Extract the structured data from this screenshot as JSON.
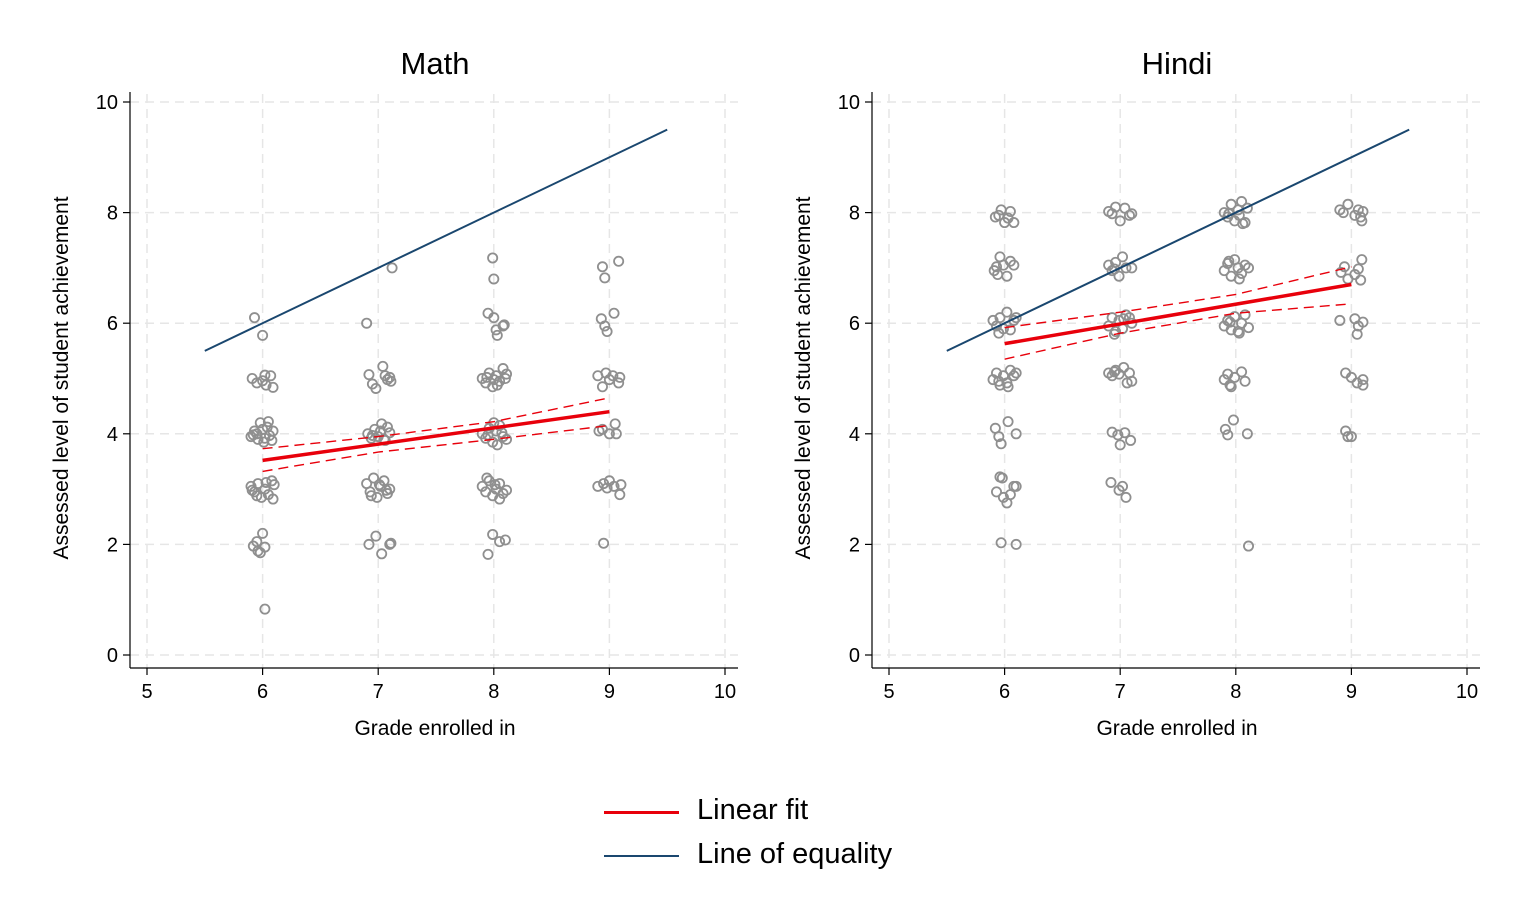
{
  "chart_data": [
    {
      "type": "scatter",
      "title": "Math",
      "xlabel": "Grade enrolled in",
      "ylabel": "Assessed level of student achievement",
      "xlim": [
        5,
        10
      ],
      "ylim": [
        0,
        10
      ],
      "xticks": [
        "5",
        "6",
        "7",
        "8",
        "9",
        "10"
      ],
      "yticks": [
        "0",
        "2",
        "4",
        "6",
        "8",
        "10"
      ],
      "grid": true,
      "points": [
        [
          5.93,
          6.1
        ],
        [
          6.0,
          5.78
        ],
        [
          5.91,
          5.0
        ],
        [
          5.95,
          4.92
        ],
        [
          6.0,
          4.96
        ],
        [
          6.03,
          4.88
        ],
        [
          6.07,
          5.05
        ],
        [
          6.09,
          4.84
        ],
        [
          6.02,
          5.06
        ],
        [
          5.9,
          3.95
        ],
        [
          5.93,
          4.05
        ],
        [
          5.96,
          3.9
        ],
        [
          5.98,
          4.2
        ],
        [
          6.01,
          3.85
        ],
        [
          6.04,
          4.12
        ],
        [
          6.06,
          3.97
        ],
        [
          6.09,
          4.05
        ],
        [
          5.95,
          4.0
        ],
        [
          6.02,
          3.92
        ],
        [
          6.05,
          4.22
        ],
        [
          6.08,
          3.88
        ],
        [
          5.92,
          3.98
        ],
        [
          6.0,
          4.08
        ],
        [
          5.9,
          3.05
        ],
        [
          5.93,
          2.95
        ],
        [
          5.96,
          3.1
        ],
        [
          5.99,
          2.85
        ],
        [
          6.02,
          3.0
        ],
        [
          6.05,
          2.9
        ],
        [
          6.08,
          3.15
        ],
        [
          6.1,
          3.08
        ],
        [
          5.95,
          2.88
        ],
        [
          6.03,
          3.12
        ],
        [
          6.09,
          2.82
        ],
        [
          5.91,
          2.98
        ],
        [
          5.92,
          1.97
        ],
        [
          5.95,
          2.05
        ],
        [
          5.98,
          1.85
        ],
        [
          6.0,
          2.2
        ],
        [
          6.02,
          1.95
        ],
        [
          5.96,
          1.88
        ],
        [
          6.02,
          0.83
        ],
        [
          6.9,
          6.0
        ],
        [
          7.12,
          7.0
        ],
        [
          6.92,
          5.07
        ],
        [
          6.95,
          4.9
        ],
        [
          6.98,
          4.82
        ],
        [
          7.04,
          5.22
        ],
        [
          7.06,
          5.05
        ],
        [
          7.08,
          4.98
        ],
        [
          7.1,
          5.02
        ],
        [
          7.11,
          4.95
        ],
        [
          6.91,
          4.0
        ],
        [
          6.94,
          3.92
        ],
        [
          6.97,
          4.08
        ],
        [
          7.0,
          3.95
        ],
        [
          7.03,
          4.18
        ],
        [
          7.05,
          3.9
        ],
        [
          7.08,
          4.12
        ],
        [
          7.1,
          4.02
        ],
        [
          6.95,
          3.97
        ],
        [
          7.02,
          4.05
        ],
        [
          7.06,
          3.88
        ],
        [
          6.9,
          3.1
        ],
        [
          6.93,
          2.95
        ],
        [
          6.96,
          3.2
        ],
        [
          6.99,
          2.85
        ],
        [
          7.02,
          3.05
        ],
        [
          7.05,
          3.15
        ],
        [
          7.08,
          2.92
        ],
        [
          7.1,
          3.0
        ],
        [
          6.94,
          2.88
        ],
        [
          7.01,
          3.08
        ],
        [
          7.07,
          2.98
        ],
        [
          6.92,
          2.0
        ],
        [
          6.98,
          2.15
        ],
        [
          7.03,
          1.83
        ],
        [
          7.1,
          2.0
        ],
        [
          7.11,
          2.02
        ],
        [
          7.99,
          7.18
        ],
        [
          8.0,
          6.8
        ],
        [
          7.95,
          6.18
        ],
        [
          8.0,
          6.1
        ],
        [
          8.02,
          5.88
        ],
        [
          8.03,
          5.78
        ],
        [
          8.08,
          5.95
        ],
        [
          8.09,
          5.97
        ],
        [
          7.9,
          5.0
        ],
        [
          7.93,
          4.92
        ],
        [
          7.96,
          5.1
        ],
        [
          7.99,
          4.85
        ],
        [
          8.02,
          5.05
        ],
        [
          8.05,
          4.95
        ],
        [
          8.08,
          5.18
        ],
        [
          8.11,
          5.08
        ],
        [
          7.94,
          5.02
        ],
        [
          8.0,
          4.98
        ],
        [
          8.03,
          4.88
        ],
        [
          8.1,
          5.0
        ],
        [
          7.9,
          4.0
        ],
        [
          7.93,
          3.92
        ],
        [
          7.96,
          4.1
        ],
        [
          7.99,
          3.85
        ],
        [
          8.02,
          4.05
        ],
        [
          8.05,
          4.15
        ],
        [
          8.08,
          3.95
        ],
        [
          8.11,
          3.9
        ],
        [
          7.95,
          3.98
        ],
        [
          8.0,
          4.2
        ],
        [
          8.03,
          3.8
        ],
        [
          8.07,
          4.02
        ],
        [
          7.9,
          3.05
        ],
        [
          7.93,
          2.95
        ],
        [
          7.96,
          3.15
        ],
        [
          7.99,
          2.88
        ],
        [
          8.02,
          3.0
        ],
        [
          8.05,
          3.1
        ],
        [
          8.08,
          2.92
        ],
        [
          8.11,
          2.98
        ],
        [
          7.94,
          3.2
        ],
        [
          8.01,
          3.08
        ],
        [
          8.05,
          2.82
        ],
        [
          7.99,
          2.18
        ],
        [
          8.05,
          2.05
        ],
        [
          8.1,
          2.08
        ],
        [
          7.95,
          1.82
        ],
        [
          8.94,
          7.02
        ],
        [
          8.96,
          6.82
        ],
        [
          9.08,
          7.12
        ],
        [
          8.93,
          6.08
        ],
        [
          8.96,
          5.95
        ],
        [
          8.98,
          5.85
        ],
        [
          9.04,
          6.18
        ],
        [
          8.9,
          5.05
        ],
        [
          8.94,
          4.85
        ],
        [
          8.97,
          5.1
        ],
        [
          9.0,
          4.98
        ],
        [
          9.03,
          5.05
        ],
        [
          9.08,
          4.92
        ],
        [
          9.09,
          5.02
        ],
        [
          8.91,
          4.05
        ],
        [
          8.94,
          4.08
        ],
        [
          9.0,
          4.0
        ],
        [
          9.05,
          4.18
        ],
        [
          9.06,
          4.0
        ],
        [
          8.9,
          3.05
        ],
        [
          8.95,
          3.1
        ],
        [
          8.98,
          3.02
        ],
        [
          9.0,
          3.15
        ],
        [
          9.04,
          3.05
        ],
        [
          9.1,
          3.08
        ],
        [
          9.09,
          2.9
        ],
        [
          8.95,
          2.02
        ]
      ],
      "linear_fit": {
        "x": [
          6,
          9
        ],
        "y": [
          3.52,
          4.4
        ]
      },
      "ci_upper": {
        "x": [
          6,
          7,
          8,
          9
        ],
        "y": [
          3.73,
          3.95,
          4.22,
          4.65
        ]
      },
      "ci_lower": {
        "x": [
          6,
          7,
          8,
          9
        ],
        "y": [
          3.32,
          3.67,
          3.9,
          4.15
        ]
      },
      "equality_line": {
        "x": [
          5.5,
          9.5
        ],
        "y": [
          5.5,
          9.5
        ]
      }
    },
    {
      "type": "scatter",
      "title": "Hindi",
      "xlabel": "Grade enrolled in",
      "ylabel": "Assessed level of student achievement",
      "xlim": [
        5,
        10
      ],
      "ylim": [
        0,
        10
      ],
      "xticks": [
        "5",
        "6",
        "7",
        "8",
        "9",
        "10"
      ],
      "yticks": [
        "0",
        "2",
        "4",
        "6",
        "8",
        "10"
      ],
      "grid": true,
      "points": [
        [
          5.92,
          7.92
        ],
        [
          5.95,
          7.95
        ],
        [
          5.97,
          8.05
        ],
        [
          6.0,
          7.82
        ],
        [
          6.03,
          7.9
        ],
        [
          6.05,
          8.02
        ],
        [
          6.08,
          7.82
        ],
        [
          5.91,
          6.95
        ],
        [
          5.94,
          6.88
        ],
        [
          5.96,
          7.2
        ],
        [
          5.99,
          7.05
        ],
        [
          6.02,
          6.85
        ],
        [
          6.05,
          7.12
        ],
        [
          6.08,
          7.05
        ],
        [
          5.93,
          7.02
        ],
        [
          5.9,
          6.05
        ],
        [
          5.93,
          5.95
        ],
        [
          5.96,
          6.1
        ],
        [
          5.99,
          5.9
        ],
        [
          6.02,
          6.2
        ],
        [
          6.05,
          5.88
        ],
        [
          6.08,
          6.05
        ],
        [
          6.1,
          6.1
        ],
        [
          5.95,
          5.82
        ],
        [
          5.9,
          4.98
        ],
        [
          5.93,
          5.1
        ],
        [
          5.96,
          4.88
        ],
        [
          5.99,
          5.05
        ],
        [
          6.02,
          4.92
        ],
        [
          6.05,
          5.15
        ],
        [
          6.08,
          5.05
        ],
        [
          6.1,
          5.1
        ],
        [
          5.95,
          4.95
        ],
        [
          6.03,
          4.85
        ],
        [
          5.92,
          4.1
        ],
        [
          5.95,
          3.95
        ],
        [
          5.97,
          3.82
        ],
        [
          6.03,
          4.22
        ],
        [
          6.1,
          4.0
        ],
        [
          5.93,
          2.95
        ],
        [
          5.96,
          3.22
        ],
        [
          5.99,
          2.85
        ],
        [
          6.02,
          2.75
        ],
        [
          6.05,
          2.9
        ],
        [
          6.08,
          3.05
        ],
        [
          6.1,
          3.05
        ],
        [
          5.98,
          3.2
        ],
        [
          5.97,
          2.03
        ],
        [
          6.1,
          2.0
        ],
        [
          6.9,
          8.02
        ],
        [
          6.93,
          7.98
        ],
        [
          6.96,
          8.1
        ],
        [
          7.0,
          7.85
        ],
        [
          7.04,
          8.08
        ],
        [
          7.08,
          7.95
        ],
        [
          7.1,
          7.98
        ],
        [
          6.9,
          7.05
        ],
        [
          6.93,
          6.95
        ],
        [
          6.96,
          7.1
        ],
        [
          6.99,
          6.85
        ],
        [
          7.02,
          7.2
        ],
        [
          7.05,
          7.0
        ],
        [
          7.1,
          7.0
        ],
        [
          6.95,
          6.98
        ],
        [
          6.9,
          5.95
        ],
        [
          6.93,
          6.1
        ],
        [
          6.96,
          5.85
        ],
        [
          6.99,
          6.05
        ],
        [
          7.02,
          5.9
        ],
        [
          7.05,
          6.15
        ],
        [
          7.08,
          6.1
        ],
        [
          7.1,
          6.0
        ],
        [
          6.95,
          5.8
        ],
        [
          7.03,
          6.08
        ],
        [
          6.9,
          5.1
        ],
        [
          6.93,
          5.05
        ],
        [
          6.96,
          5.15
        ],
        [
          6.99,
          5.08
        ],
        [
          7.03,
          5.2
        ],
        [
          7.06,
          4.92
        ],
        [
          7.08,
          5.1
        ],
        [
          7.1,
          4.95
        ],
        [
          6.95,
          5.12
        ],
        [
          6.93,
          4.03
        ],
        [
          6.98,
          3.98
        ],
        [
          7.0,
          3.8
        ],
        [
          7.04,
          4.02
        ],
        [
          7.09,
          3.88
        ],
        [
          6.92,
          3.12
        ],
        [
          6.99,
          2.98
        ],
        [
          7.02,
          3.05
        ],
        [
          7.05,
          2.85
        ],
        [
          7.9,
          8.0
        ],
        [
          7.93,
          7.92
        ],
        [
          7.96,
          8.15
        ],
        [
          7.99,
          7.85
        ],
        [
          8.02,
          8.05
        ],
        [
          8.05,
          8.2
        ],
        [
          8.08,
          7.82
        ],
        [
          8.1,
          8.08
        ],
        [
          7.94,
          7.98
        ],
        [
          8.03,
          7.95
        ],
        [
          8.06,
          7.8
        ],
        [
          7.9,
          6.95
        ],
        [
          7.93,
          7.08
        ],
        [
          7.96,
          6.85
        ],
        [
          7.99,
          7.15
        ],
        [
          8.02,
          7.0
        ],
        [
          8.05,
          6.9
        ],
        [
          8.08,
          7.05
        ],
        [
          8.11,
          7.0
        ],
        [
          7.94,
          7.12
        ],
        [
          8.03,
          6.8
        ],
        [
          7.9,
          5.95
        ],
        [
          7.93,
          6.05
        ],
        [
          7.96,
          5.88
        ],
        [
          7.99,
          6.12
        ],
        [
          8.02,
          5.85
        ],
        [
          8.05,
          6.0
        ],
        [
          8.08,
          6.15
        ],
        [
          8.11,
          5.92
        ],
        [
          7.95,
          6.02
        ],
        [
          8.03,
          5.82
        ],
        [
          7.9,
          4.98
        ],
        [
          7.93,
          5.08
        ],
        [
          7.96,
          4.85
        ],
        [
          7.99,
          5.02
        ],
        [
          8.05,
          5.12
        ],
        [
          8.08,
          4.95
        ],
        [
          7.95,
          4.88
        ],
        [
          7.91,
          4.08
        ],
        [
          7.93,
          3.98
        ],
        [
          7.98,
          4.25
        ],
        [
          8.1,
          4.0
        ],
        [
          8.11,
          1.97
        ],
        [
          8.9,
          8.05
        ],
        [
          8.93,
          8.0
        ],
        [
          8.97,
          8.15
        ],
        [
          9.03,
          7.95
        ],
        [
          9.06,
          8.05
        ],
        [
          9.08,
          7.92
        ],
        [
          9.1,
          8.02
        ],
        [
          9.09,
          7.85
        ],
        [
          8.91,
          6.92
        ],
        [
          8.94,
          7.02
        ],
        [
          8.97,
          6.8
        ],
        [
          9.03,
          6.88
        ],
        [
          9.06,
          6.98
        ],
        [
          9.09,
          7.15
        ],
        [
          9.08,
          6.78
        ],
        [
          8.9,
          6.05
        ],
        [
          9.03,
          6.08
        ],
        [
          9.05,
          5.8
        ],
        [
          9.06,
          5.95
        ],
        [
          9.1,
          6.02
        ],
        [
          8.95,
          5.1
        ],
        [
          9.0,
          5.02
        ],
        [
          9.05,
          4.92
        ],
        [
          9.1,
          4.98
        ],
        [
          9.1,
          4.88
        ],
        [
          8.95,
          4.05
        ],
        [
          8.97,
          3.95
        ],
        [
          9.0,
          3.95
        ]
      ],
      "linear_fit": {
        "x": [
          6,
          9
        ],
        "y": [
          5.63,
          6.7
        ]
      },
      "ci_upper": {
        "x": [
          6,
          7,
          8,
          9
        ],
        "y": [
          5.92,
          6.2,
          6.52,
          7.02
        ]
      },
      "ci_lower": {
        "x": [
          6,
          7,
          8,
          9
        ],
        "y": [
          5.35,
          5.82,
          6.18,
          6.35
        ]
      },
      "equality_line": {
        "x": [
          5.5,
          9.5
        ],
        "y": [
          5.5,
          9.5
        ]
      }
    }
  ],
  "legend": {
    "items": [
      {
        "label": "Linear fit",
        "color": "#e8000b"
      },
      {
        "label": "Line of equality",
        "color": "#1a476f"
      }
    ]
  },
  "colors": {
    "scatter": "#8f8f8f",
    "fit": "#e8000b",
    "equality": "#1a476f",
    "grid": "#e6e6e6",
    "axis": "#000000"
  }
}
